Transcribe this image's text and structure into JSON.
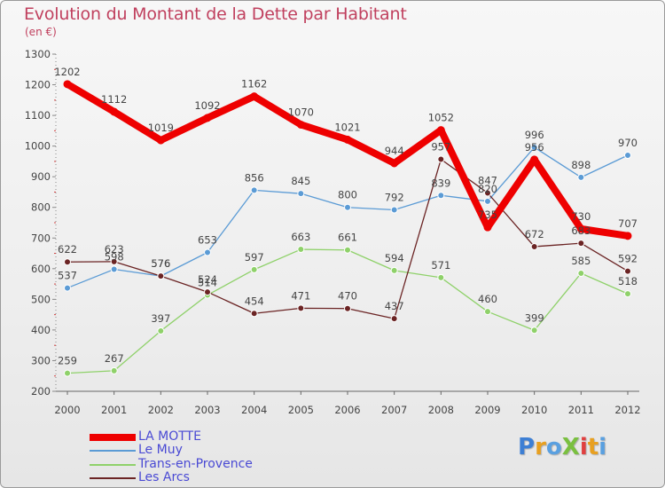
{
  "title": "Evolution du Montant de la Dette par Habitant",
  "unit": "(en €)",
  "logo": {
    "text": "ProXiti",
    "colors": [
      "#3d7fd4",
      "#e8a020",
      "#5aa0e0",
      "#7ac040",
      "#e04040",
      "#e8a020",
      "#5aa0e0"
    ]
  },
  "chart_data": {
    "type": "line",
    "x": [
      "2000",
      "2001",
      "2002",
      "2003",
      "2004",
      "2005",
      "2006",
      "2007",
      "2008",
      "2009",
      "2010",
      "2011",
      "2012"
    ],
    "ylim": [
      200,
      1300
    ],
    "yticks": [
      "200",
      "300",
      "400",
      "500",
      "600",
      "700",
      "800",
      "900",
      "1000",
      "1100",
      "1200",
      "1300"
    ],
    "grid": false,
    "legend_position": "bottom-left",
    "series": [
      {
        "name": "LA MOTTE",
        "color": "#ee0000",
        "values": [
          1202,
          1112,
          1019,
          1092,
          1162,
          1070,
          1021,
          944,
          1052,
          735,
          956,
          730,
          707
        ]
      },
      {
        "name": "Le Muy",
        "color": "#5b9bd5",
        "values": [
          537,
          598,
          576,
          653,
          856,
          845,
          800,
          792,
          839,
          820,
          996,
          898,
          970
        ]
      },
      {
        "name": "Trans-en-Provence",
        "color": "#8fd16a",
        "values": [
          259,
          267,
          397,
          514,
          597,
          663,
          661,
          594,
          571,
          460,
          399,
          585,
          518
        ]
      },
      {
        "name": "Les Arcs",
        "color": "#6b2424",
        "values": [
          622,
          623,
          576,
          524,
          454,
          471,
          470,
          437,
          957,
          847,
          672,
          683,
          592
        ]
      }
    ]
  }
}
